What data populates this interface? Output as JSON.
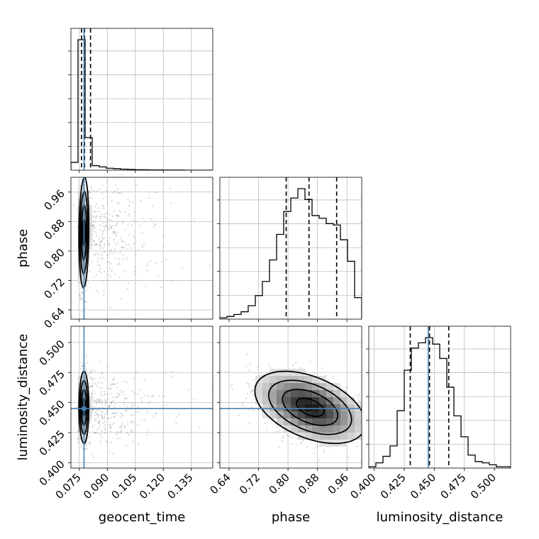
{
  "chart_data": {
    "type": "corner",
    "parameters": [
      "geocent_time",
      "phase",
      "luminosity_distance"
    ],
    "truths": {
      "geocent_time": 0.0775,
      "luminosity_distance": 0.445
    },
    "truth_color": "#4682b4",
    "grid": true,
    "ranges": {
      "geocent_time": [
        0.0705,
        0.1465
      ],
      "phase": [
        0.615,
        1.0
      ],
      "luminosity_distance": [
        0.3955,
        0.5135
      ]
    },
    "ticks": {
      "geocent_time": [
        0.075,
        0.09,
        0.105,
        0.12,
        0.135
      ],
      "phase": [
        0.64,
        0.72,
        0.8,
        0.88,
        0.96
      ],
      "luminosity_distance": [
        0.4,
        0.425,
        0.45,
        0.475,
        0.5
      ]
    },
    "tick_labels": {
      "geocent_time": [
        "0.075",
        "0.090",
        "0.105",
        "0.120",
        "0.135"
      ],
      "phase": [
        "0.64",
        "0.72",
        "0.80",
        "0.88",
        "0.96"
      ],
      "luminosity_distance": [
        "0.400",
        "0.425",
        "0.450",
        "0.475",
        "0.500"
      ]
    },
    "quantiles": {
      "geocent_time": [
        0.0762,
        0.0778,
        0.081
      ],
      "phase": [
        0.795,
        0.857,
        0.932
      ],
      "luminosity_distance": [
        0.43,
        0.446,
        0.462
      ]
    },
    "histograms": {
      "geocent_time": {
        "edges": [
          0.0705,
          0.0743,
          0.0781,
          0.0819,
          0.0857,
          0.0895,
          0.0933,
          0.0971,
          0.1009,
          0.1047,
          0.1085,
          0.1123,
          0.1161,
          0.1199,
          0.1237,
          0.1275,
          0.1313,
          0.1351,
          0.1389,
          0.1427,
          0.1465
        ],
        "counts": [
          0.06,
          1.0,
          0.25,
          0.035,
          0.025,
          0.015,
          0.012,
          0.008,
          0.006,
          0.004,
          0.003,
          0.002,
          0.002,
          0.001,
          0.001,
          0.001,
          0.0,
          0.0,
          0.0,
          0.0
        ]
      },
      "phase": {
        "edges": [
          0.615,
          0.63425,
          0.6535,
          0.67275,
          0.692,
          0.71125,
          0.7305,
          0.74975,
          0.769,
          0.78825,
          0.8075,
          0.82675,
          0.846,
          0.86525,
          0.8845,
          0.90375,
          0.923,
          0.94225,
          0.9615,
          0.98075,
          1.0
        ],
        "counts": [
          0.01,
          0.02,
          0.035,
          0.055,
          0.1,
          0.175,
          0.28,
          0.44,
          0.63,
          0.8,
          0.9,
          0.97,
          0.89,
          0.77,
          0.75,
          0.71,
          0.7,
          0.59,
          0.43,
          0.16
        ]
      },
      "luminosity_distance": {
        "edges": [
          0.3955,
          0.4014,
          0.4073,
          0.4132,
          0.4191,
          0.425,
          0.4309,
          0.4368,
          0.4427,
          0.4486,
          0.4545,
          0.4604,
          0.4663,
          0.4722,
          0.4781,
          0.484,
          0.4899,
          0.4958,
          0.5017,
          0.5076,
          0.5135
        ],
        "counts": [
          0.01,
          0.04,
          0.09,
          0.17,
          0.44,
          0.75,
          0.92,
          0.96,
          1.0,
          0.95,
          0.84,
          0.62,
          0.4,
          0.24,
          0.1,
          0.05,
          0.04,
          0.025,
          0.01,
          0.01
        ]
      }
    },
    "contour_levels": [
      0.393,
      0.865,
      0.989,
      0.9997
    ]
  }
}
